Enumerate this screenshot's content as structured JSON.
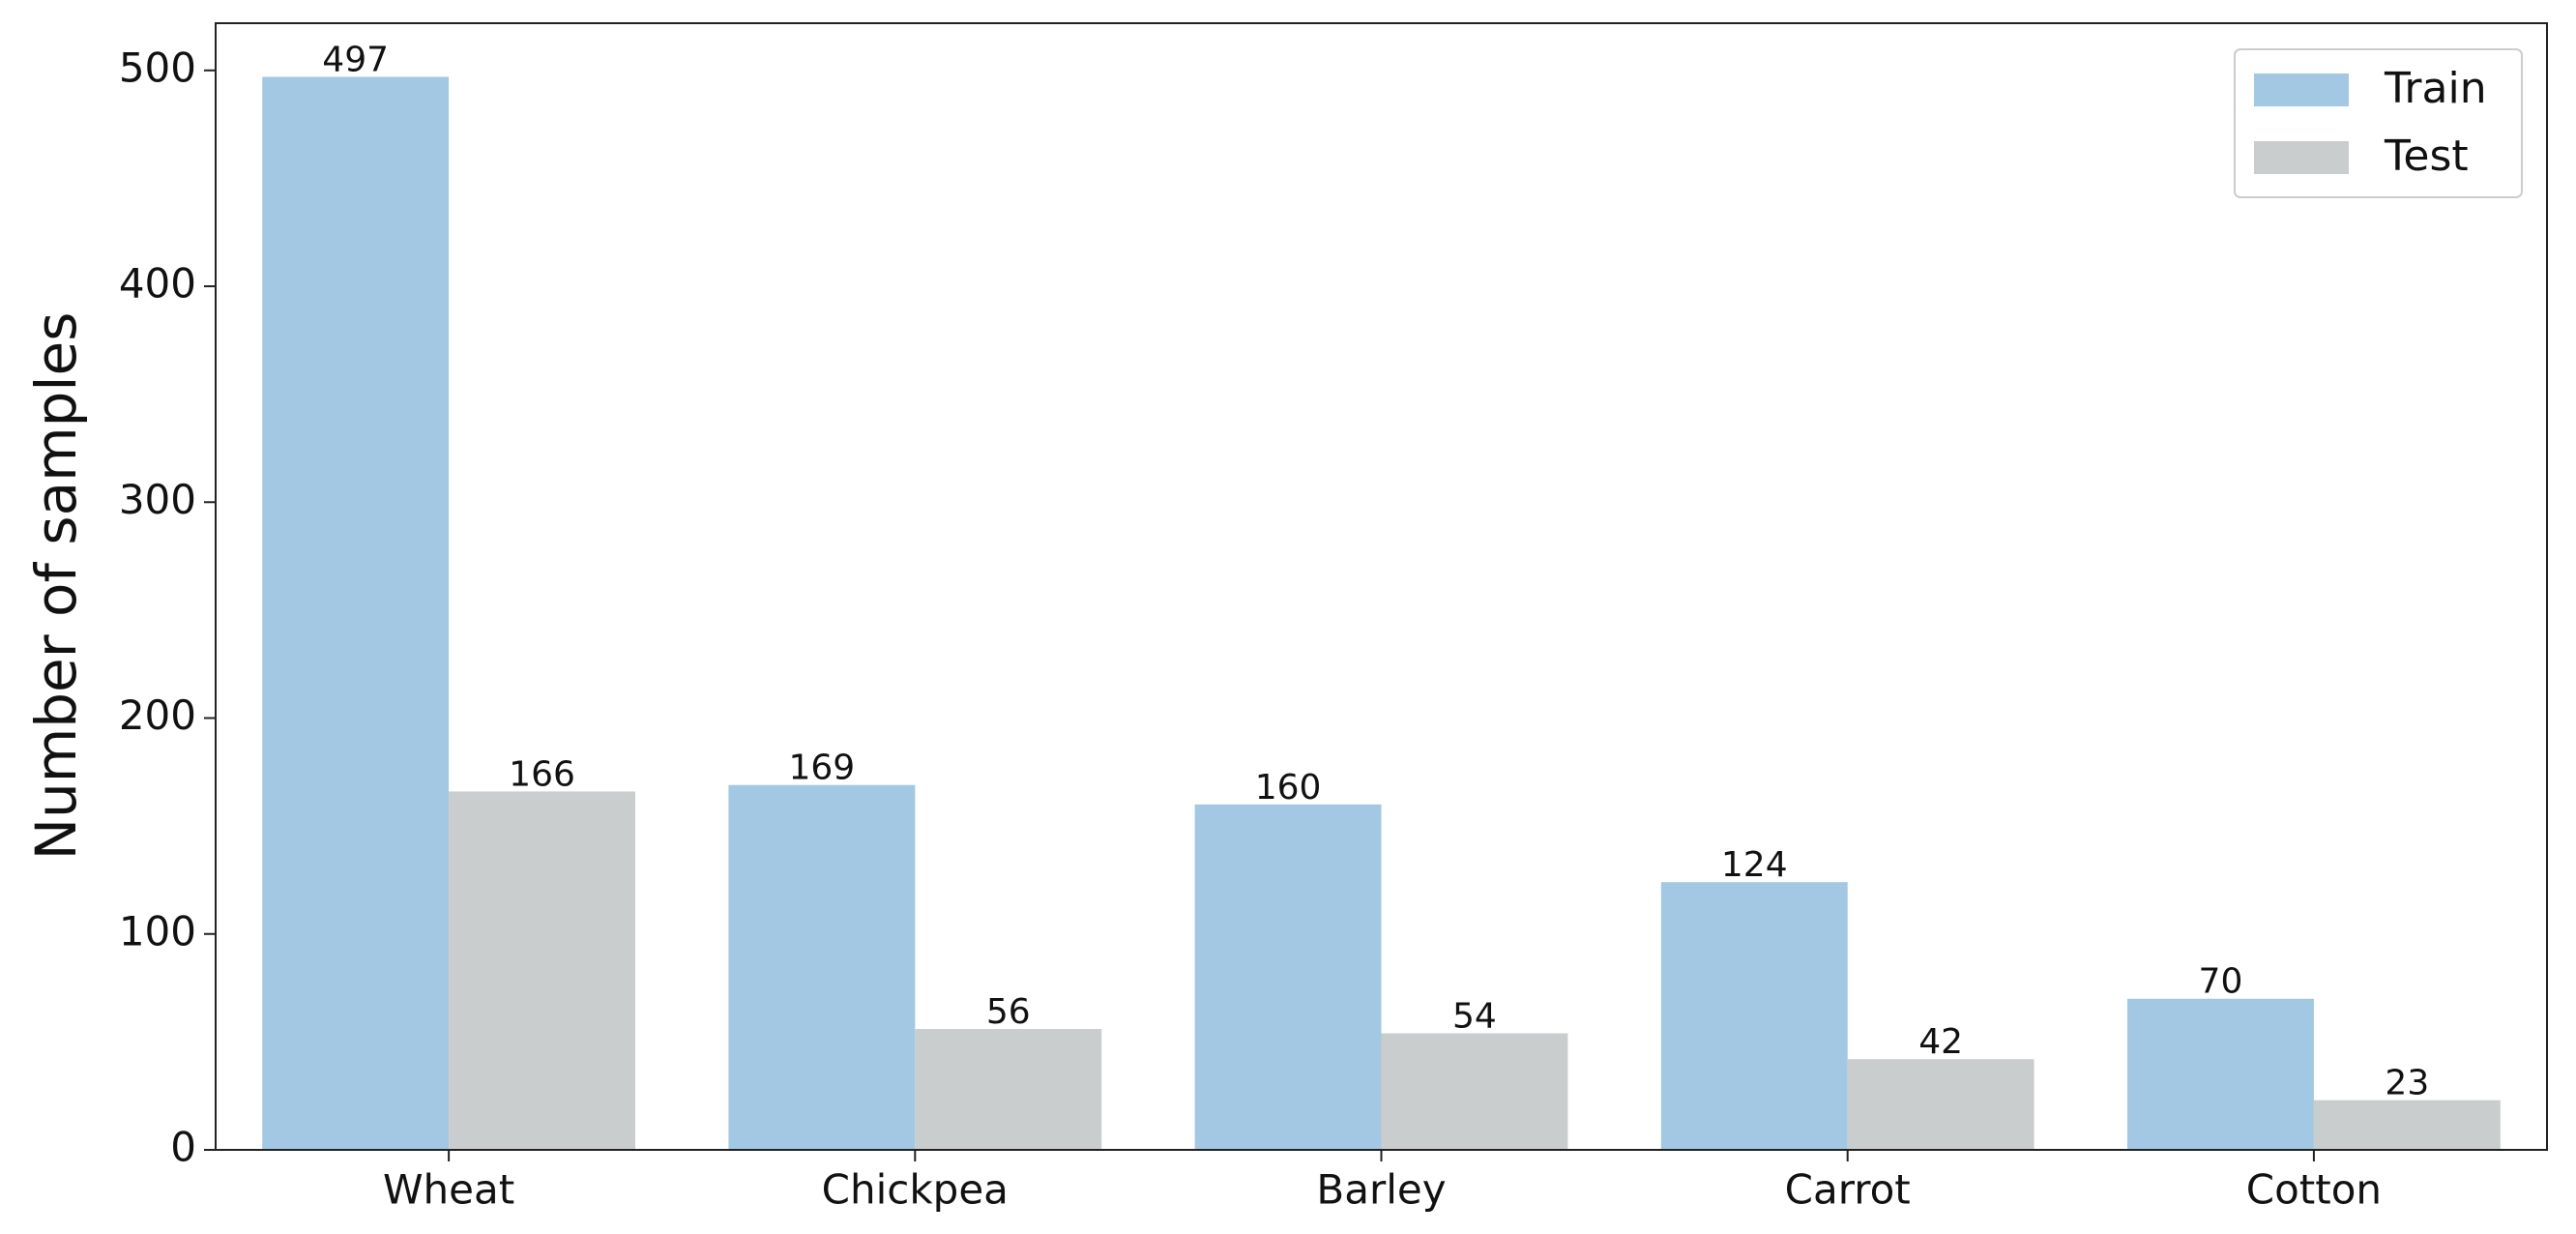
{
  "chart_data": {
    "type": "bar",
    "y_label": "Number of samples",
    "categories": [
      "Wheat",
      "Chickpea",
      "Barley",
      "Carrot",
      "Cotton"
    ],
    "series": [
      {
        "name": "Train",
        "color": "#a3c8e4",
        "values": [
          497,
          169,
          160,
          124,
          70
        ]
      },
      {
        "name": "Test",
        "color": "#c9cdce",
        "values": [
          166,
          56,
          54,
          42,
          23
        ]
      }
    ],
    "ylim": [
      0,
      521.85
    ],
    "yticks": [
      0,
      100,
      200,
      300,
      400,
      500
    ],
    "legend": "upper right"
  }
}
